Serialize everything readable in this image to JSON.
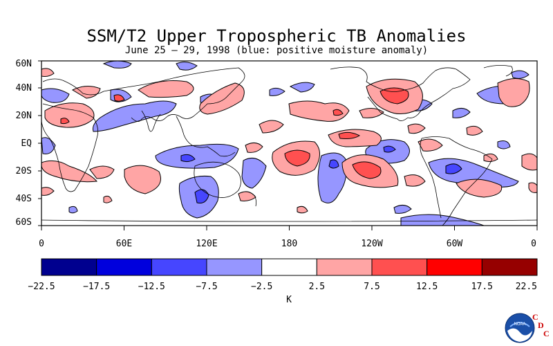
{
  "title": "SSM/T2 Upper Tropospheric TB Anomalies",
  "subtitle": "June 25 – 29, 1998 (blue: positive moisture anomaly)",
  "map": {
    "lat_labels": [
      "60N",
      "40N",
      "20N",
      "EQ",
      "20S",
      "40S",
      "60S"
    ],
    "lon_labels": [
      "0",
      "60E",
      "120E",
      "180",
      "120W",
      "60W",
      "0"
    ]
  },
  "colorbar": {
    "unit": "K",
    "boundaries": [
      "−22.5",
      "−17.5",
      "−12.5",
      "−7.5",
      "−2.5",
      "2.5",
      "7.5",
      "12.5",
      "17.5",
      "22.5"
    ],
    "colors": [
      "#00008f",
      "#0000dd",
      "#4646ff",
      "#9696ff",
      "#ffffff",
      "#ffa5a5",
      "#ff5050",
      "#ff0000",
      "#960000"
    ]
  },
  "logo": {
    "agency": "NOAA",
    "letters": [
      "C",
      "D",
      "C"
    ]
  }
}
